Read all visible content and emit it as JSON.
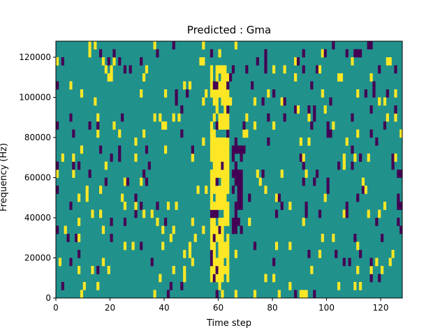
{
  "chart_data": {
    "type": "heatmap",
    "title": "Predicted : Gma",
    "xlabel": "Time step",
    "ylabel": "Frequency (Hz)",
    "xlim": [
      0,
      128
    ],
    "ylim": [
      0,
      128000
    ],
    "rows": 32,
    "cols": 128,
    "xticks": [
      0,
      20,
      40,
      60,
      80,
      100,
      120
    ],
    "yticks": [
      0,
      20000,
      40000,
      60000,
      80000,
      100000,
      120000
    ],
    "colors": {
      "background": "#21918c",
      "high": "#fde725",
      "low": "#440154"
    },
    "dense_band": {
      "cols": [
        57,
        63
      ],
      "rows": [
        2,
        28
      ]
    },
    "dark_band": {
      "cols": [
        65,
        68
      ],
      "rows": [
        8,
        19
      ]
    }
  }
}
